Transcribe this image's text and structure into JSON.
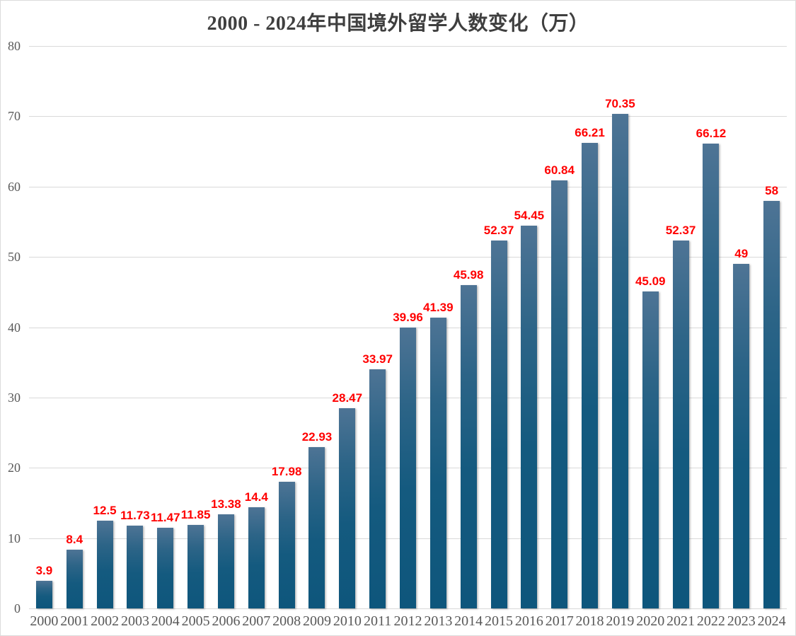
{
  "chart_data": {
    "type": "bar",
    "title": "2000 - 2024年中国境外留学人数变化（万）",
    "categories": [
      "2000",
      "2001",
      "2002",
      "2003",
      "2004",
      "2005",
      "2006",
      "2007",
      "2008",
      "2009",
      "2010",
      "2011",
      "2012",
      "2013",
      "2014",
      "2015",
      "2016",
      "2017",
      "2018",
      "2019",
      "2020",
      "2021",
      "2022",
      "2023",
      "2024"
    ],
    "values": [
      3.9,
      8.4,
      12.5,
      11.73,
      11.47,
      11.85,
      13.38,
      14.4,
      17.98,
      22.93,
      28.47,
      33.97,
      39.96,
      41.39,
      45.98,
      52.37,
      54.45,
      60.84,
      66.21,
      70.35,
      45.09,
      52.37,
      66.12,
      49,
      58
    ],
    "value_labels": [
      "3.9",
      "8.4",
      "12.5",
      "11.73",
      "11.47",
      "11.85",
      "13.38",
      "14.4",
      "17.98",
      "22.93",
      "28.47",
      "33.97",
      "39.96",
      "41.39",
      "45.98",
      "52.37",
      "54.45",
      "60.84",
      "66.21",
      "70.35",
      "45.09",
      "52.37",
      "66.12",
      "49",
      "58"
    ],
    "xlabel": "",
    "ylabel": "",
    "ylim": [
      0,
      80
    ],
    "y_ticks": [
      "0",
      "10",
      "20",
      "30",
      "40",
      "50",
      "60",
      "70",
      "80"
    ],
    "grid": "horizontal",
    "legend_position": "none",
    "colors": {
      "bar_gradient_top": "#4e7495",
      "bar_gradient_bottom": "#0e567c",
      "value_label": "#ff0000",
      "axis_label": "#595959",
      "title": "#3f3f3f",
      "gridline": "#d9d9d9",
      "background": "#ffffff"
    }
  }
}
